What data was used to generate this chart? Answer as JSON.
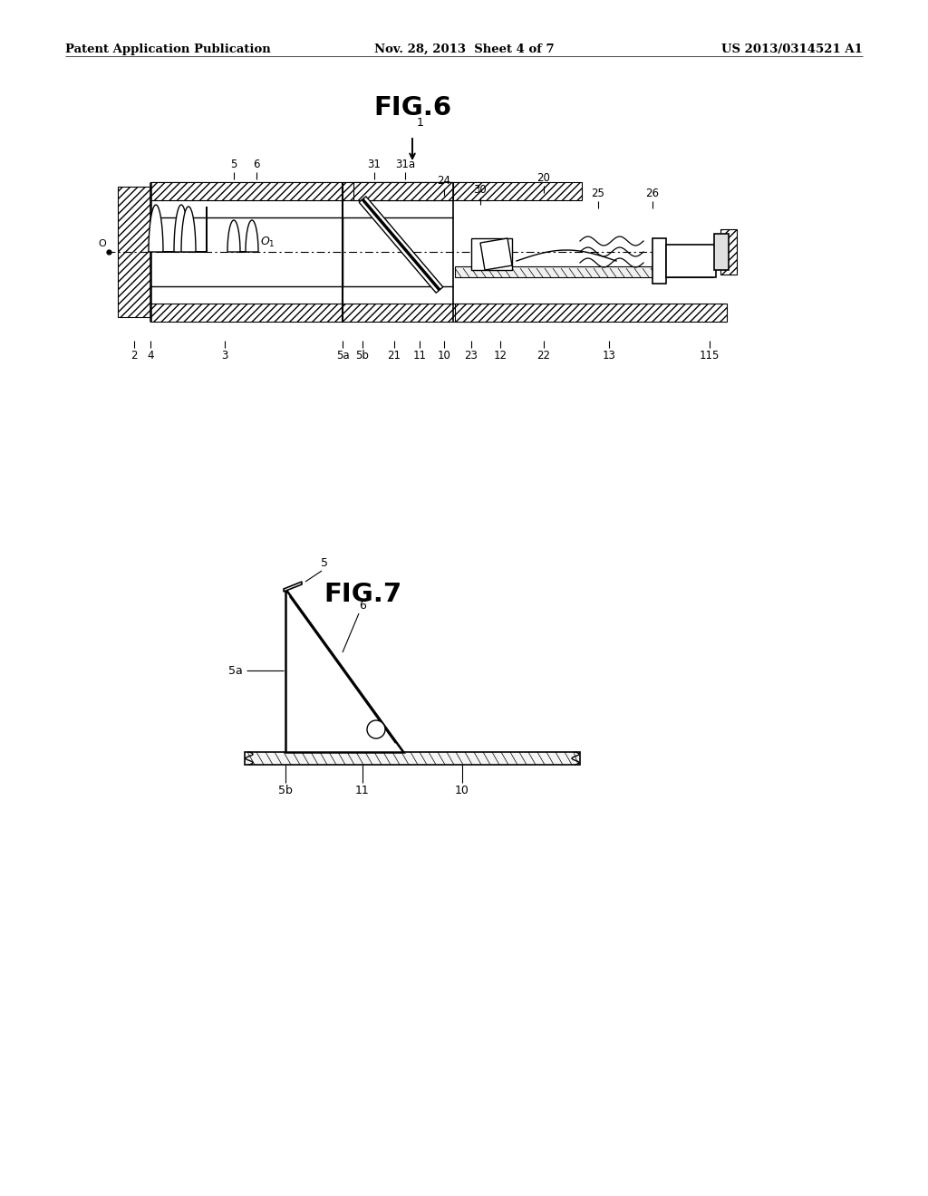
{
  "background_color": "#ffffff",
  "header_left": "Patent Application Publication",
  "header_center": "Nov. 28, 2013  Sheet 4 of 7",
  "header_right": "US 2013/0314521 A1",
  "fig6_title": "FIG.6",
  "fig7_title": "FIG.7",
  "line_color": "#000000"
}
